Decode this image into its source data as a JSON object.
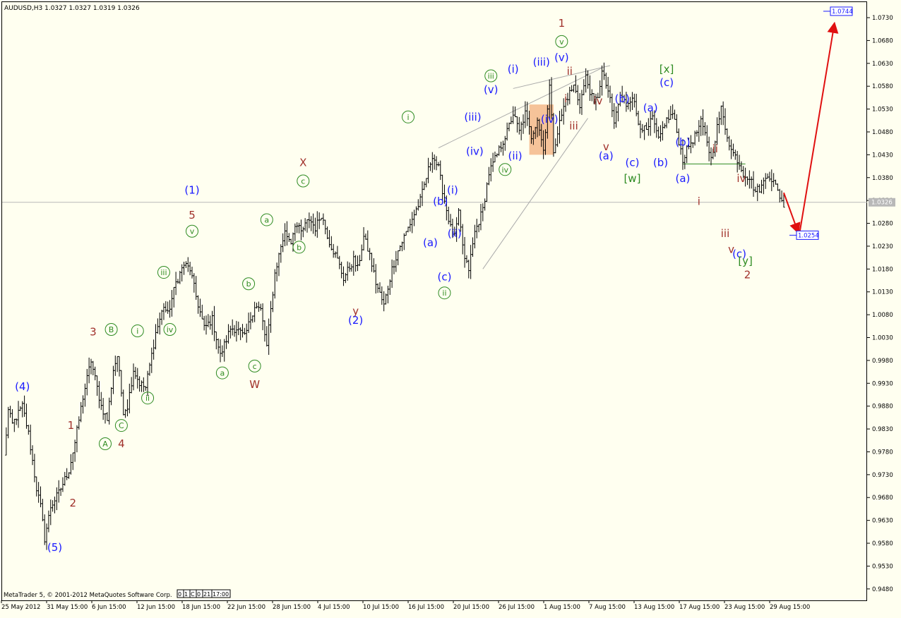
{
  "header": {
    "symbol_text": "AUDUSD,H3  1.0327 1.0327 1.0319 1.0326"
  },
  "footer": {
    "copyright": "MetaTrader 5, © 2001-2012 MetaQuotes Software Corp.",
    "tab_labels": [
      "0",
      "1",
      "C",
      "0",
      "21",
      "17:00"
    ]
  },
  "colors": {
    "background": "#fffff0",
    "bars": "#000000",
    "blue_labels": "#1a1aff",
    "green_labels": "#2e8b22",
    "brown_labels": "#a0302a",
    "arrow": "#e01010",
    "box": "#f4b98a",
    "current_line": "#b8b8b8"
  },
  "chart_data": {
    "type": "ohlc",
    "symbol": "AUDUSD",
    "timeframe": "H3",
    "last_quote": {
      "open": 1.0327,
      "high": 1.0327,
      "low": 1.0319,
      "close": 1.0326
    },
    "ylim": [
      0.9455,
      1.0764
    ],
    "y_ticks": [
      "1.0730",
      "1.0680",
      "1.0630",
      "1.0580",
      "1.0530",
      "1.0480",
      "1.0430",
      "1.0380",
      "1.0330",
      "1.0280",
      "1.0230",
      "1.0180",
      "1.0130",
      "1.0080",
      "1.0030",
      "0.9980",
      "0.9930",
      "0.9880",
      "0.9830",
      "0.9780",
      "0.9730",
      "0.9680",
      "0.9630",
      "0.9580",
      "0.9530",
      "0.9480"
    ],
    "x_labels": [
      "25 May 2012",
      "31 May 15:00",
      "6 Jun 15:00",
      "12 Jun 15:00",
      "18 Jun 15:00",
      "22 Jun 15:00",
      "28 Jun 15:00",
      "4 Jul 15:00",
      "10 Jul 15:00",
      "16 Jul 15:00",
      "20 Jul 15:00",
      "26 Jul 15:00",
      "1 Aug 15:00",
      "7 Aug 15:00",
      "13 Aug 15:00",
      "17 Aug 15:00",
      "23 Aug 15:00",
      "29 Aug 15:00"
    ],
    "current_price": {
      "value": 1.0326,
      "label": "1.0326"
    },
    "target_labels": [
      {
        "value": 1.0744,
        "label": "1.0744"
      },
      {
        "value": 1.0254,
        "label": "1.0254"
      }
    ],
    "anchors": [
      {
        "t": 0,
        "p": 0.977
      },
      {
        "t": 2,
        "p": 0.987
      },
      {
        "t": 4,
        "p": 0.984
      },
      {
        "t": 9,
        "p": 0.988
      },
      {
        "t": 12,
        "p": 0.982
      },
      {
        "t": 16,
        "p": 0.97
      },
      {
        "t": 18,
        "p": 0.966
      },
      {
        "t": 20,
        "p": 0.959
      },
      {
        "t": 23,
        "p": 0.966
      },
      {
        "t": 27,
        "p": 0.969
      },
      {
        "t": 32,
        "p": 0.974
      },
      {
        "t": 35,
        "p": 0.98
      },
      {
        "t": 39,
        "p": 0.99
      },
      {
        "t": 43,
        "p": 0.998
      },
      {
        "t": 46,
        "p": 0.992
      },
      {
        "t": 48,
        "p": 0.988
      },
      {
        "t": 51,
        "p": 0.985
      },
      {
        "t": 54,
        "p": 0.996
      },
      {
        "t": 56,
        "p": 0.999
      },
      {
        "t": 59,
        "p": 0.987
      },
      {
        "t": 61,
        "p": 0.988
      },
      {
        "t": 64,
        "p": 0.996
      },
      {
        "t": 67,
        "p": 0.993
      },
      {
        "t": 70,
        "p": 0.992
      },
      {
        "t": 75,
        "p": 1.004
      },
      {
        "t": 79,
        "p": 1.01
      },
      {
        "t": 81,
        "p": 1.008
      },
      {
        "t": 85,
        "p": 1.015
      },
      {
        "t": 89,
        "p": 1.019
      },
      {
        "t": 92,
        "p": 1.018
      },
      {
        "t": 95,
        "p": 1.012
      },
      {
        "t": 99,
        "p": 1.005
      },
      {
        "t": 103,
        "p": 1.007
      },
      {
        "t": 107,
        "p": 0.999
      },
      {
        "t": 112,
        "p": 1.005
      },
      {
        "t": 115,
        "p": 1.005
      },
      {
        "t": 119,
        "p": 1.003
      },
      {
        "t": 124,
        "p": 1.01
      },
      {
        "t": 127,
        "p": 1.009
      },
      {
        "t": 130,
        "p": 1.001
      },
      {
        "t": 134,
        "p": 1.017
      },
      {
        "t": 137,
        "p": 1.023
      },
      {
        "t": 139,
        "p": 1.026
      },
      {
        "t": 142,
        "p": 1.024
      },
      {
        "t": 144,
        "p": 1.028
      },
      {
        "t": 147,
        "p": 1.026
      },
      {
        "t": 151,
        "p": 1.029
      },
      {
        "t": 154,
        "p": 1.027
      },
      {
        "t": 157,
        "p": 1.03
      },
      {
        "t": 161,
        "p": 1.024
      },
      {
        "t": 165,
        "p": 1.02
      },
      {
        "t": 168,
        "p": 1.016
      },
      {
        "t": 173,
        "p": 1.02
      },
      {
        "t": 175,
        "p": 1.018
      },
      {
        "t": 178,
        "p": 1.025
      },
      {
        "t": 181,
        "p": 1.021
      },
      {
        "t": 184,
        "p": 1.015
      },
      {
        "t": 188,
        "p": 1.01
      },
      {
        "t": 192,
        "p": 1.018
      },
      {
        "t": 195,
        "p": 1.022
      },
      {
        "t": 200,
        "p": 1.027
      },
      {
        "t": 203,
        "p": 1.03
      },
      {
        "t": 206,
        "p": 1.033
      },
      {
        "t": 209,
        "p": 1.038
      },
      {
        "t": 212,
        "p": 1.043
      },
      {
        "t": 215,
        "p": 1.04
      },
      {
        "t": 218,
        "p": 1.033
      },
      {
        "t": 221,
        "p": 1.027
      },
      {
        "t": 223,
        "p": 1.025
      },
      {
        "t": 225,
        "p": 1.03
      },
      {
        "t": 228,
        "p": 1.02
      },
      {
        "t": 230,
        "p": 1.018
      },
      {
        "t": 233,
        "p": 1.026
      },
      {
        "t": 237,
        "p": 1.031
      },
      {
        "t": 240,
        "p": 1.039
      },
      {
        "t": 243,
        "p": 1.042
      },
      {
        "t": 246,
        "p": 1.045
      },
      {
        "t": 249,
        "p": 1.048
      },
      {
        "t": 252,
        "p": 1.052
      },
      {
        "t": 255,
        "p": 1.048
      },
      {
        "t": 258,
        "p": 1.052
      },
      {
        "t": 261,
        "p": 1.047
      },
      {
        "t": 264,
        "p": 1.051
      },
      {
        "t": 267,
        "p": 1.044
      },
      {
        "t": 270,
        "p": 1.058
      },
      {
        "t": 272,
        "p": 1.044
      },
      {
        "t": 275,
        "p": 1.05
      },
      {
        "t": 278,
        "p": 1.055
      },
      {
        "t": 282,
        "p": 1.058
      },
      {
        "t": 285,
        "p": 1.054
      },
      {
        "t": 288,
        "p": 1.06
      },
      {
        "t": 292,
        "p": 1.054
      },
      {
        "t": 294,
        "p": 1.056
      },
      {
        "t": 296,
        "p": 1.061
      },
      {
        "t": 299,
        "p": 1.057
      },
      {
        "t": 302,
        "p": 1.05
      },
      {
        "t": 305,
        "p": 1.056
      },
      {
        "t": 308,
        "p": 1.054
      },
      {
        "t": 311,
        "p": 1.056
      },
      {
        "t": 314,
        "p": 1.05
      },
      {
        "t": 318,
        "p": 1.048
      },
      {
        "t": 321,
        "p": 1.051
      },
      {
        "t": 324,
        "p": 1.046
      },
      {
        "t": 327,
        "p": 1.05
      },
      {
        "t": 331,
        "p": 1.052
      },
      {
        "t": 334,
        "p": 1.046
      },
      {
        "t": 336,
        "p": 1.042
      },
      {
        "t": 339,
        "p": 1.045
      },
      {
        "t": 342,
        "p": 1.047
      },
      {
        "t": 345,
        "p": 1.05
      },
      {
        "t": 348,
        "p": 1.046
      },
      {
        "t": 350,
        "p": 1.042
      },
      {
        "t": 353,
        "p": 1.049
      },
      {
        "t": 355,
        "p": 1.053
      },
      {
        "t": 357,
        "p": 1.049
      },
      {
        "t": 360,
        "p": 1.044
      },
      {
        "t": 363,
        "p": 1.042
      },
      {
        "t": 366,
        "p": 1.039
      },
      {
        "t": 369,
        "p": 1.038
      },
      {
        "t": 372,
        "p": 1.035
      },
      {
        "t": 375,
        "p": 1.036
      },
      {
        "t": 378,
        "p": 1.039
      },
      {
        "t": 381,
        "p": 1.037
      },
      {
        "t": 384,
        "p": 1.034
      },
      {
        "t": 386,
        "p": 1.032
      }
    ]
  },
  "annotations": [
    {
      "text": "(4)",
      "t": 9,
      "p": 0.9915,
      "color": "blue"
    },
    {
      "text": "(5)",
      "t": 25,
      "p": 0.9563,
      "color": "blue"
    },
    {
      "text": "1",
      "t": 33,
      "p": 0.983,
      "color": "brown"
    },
    {
      "text": "2",
      "t": 34,
      "p": 0.966,
      "color": "brown"
    },
    {
      "text": "3",
      "t": 44,
      "p": 1.0035,
      "color": "brown"
    },
    {
      "text": "4",
      "t": 58,
      "p": 0.979,
      "color": "brown"
    },
    {
      "text": "A",
      "t": 50,
      "p": 0.979,
      "color": "green",
      "circled": true
    },
    {
      "text": "B",
      "t": 53,
      "p": 1.004,
      "color": "green",
      "circled": true
    },
    {
      "text": "C",
      "t": 58,
      "p": 0.983,
      "color": "green",
      "circled": true
    },
    {
      "text": "i",
      "t": 66,
      "p": 1.0037,
      "color": "green",
      "circled": true
    },
    {
      "text": "ii",
      "t": 71,
      "p": 0.989,
      "color": "green",
      "circled": true
    },
    {
      "text": "iii",
      "t": 79,
      "p": 1.0165,
      "color": "green",
      "circled": true
    },
    {
      "text": "iv",
      "t": 82,
      "p": 1.004,
      "color": "green",
      "circled": true
    },
    {
      "text": "v",
      "t": 93,
      "p": 1.0255,
      "color": "green",
      "circled": true
    },
    {
      "text": "5",
      "t": 93,
      "p": 1.029,
      "color": "brown"
    },
    {
      "text": "(1)",
      "t": 93,
      "p": 1.0345,
      "color": "blue"
    },
    {
      "text": "a",
      "t": 108,
      "p": 0.9945,
      "color": "green",
      "circled": true
    },
    {
      "text": "b",
      "t": 121,
      "p": 1.014,
      "color": "green",
      "circled": true
    },
    {
      "text": "c",
      "t": 124,
      "p": 0.996,
      "color": "green",
      "circled": true
    },
    {
      "text": "W",
      "t": 124,
      "p": 0.992,
      "color": "brown"
    },
    {
      "text": "a",
      "t": 130,
      "p": 1.028,
      "color": "green",
      "circled": true
    },
    {
      "text": "b",
      "t": 146,
      "p": 1.022,
      "color": "green",
      "circled": true
    },
    {
      "text": "c",
      "t": 148,
      "p": 1.0365,
      "color": "green",
      "circled": true
    },
    {
      "text": "X",
      "t": 148,
      "p": 1.0405,
      "color": "brown"
    },
    {
      "text": "y",
      "t": 174,
      "p": 1.008,
      "color": "brown"
    },
    {
      "text": "(2)",
      "t": 174,
      "p": 1.006,
      "color": "blue"
    },
    {
      "text": "i",
      "t": 200,
      "p": 1.0505,
      "color": "green",
      "circled": true
    },
    {
      "text": "(a)",
      "t": 211,
      "p": 1.023,
      "color": "blue"
    },
    {
      "text": "(b)",
      "t": 216,
      "p": 1.032,
      "color": "blue"
    },
    {
      "text": "(c)",
      "t": 218,
      "p": 1.0155,
      "color": "blue"
    },
    {
      "text": "ii",
      "t": 218,
      "p": 1.012,
      "color": "green",
      "circled": true
    },
    {
      "text": "(i)",
      "t": 222,
      "p": 1.0345,
      "color": "blue"
    },
    {
      "text": "(ii)",
      "t": 223,
      "p": 1.025,
      "color": "blue"
    },
    {
      "text": "(iii)",
      "t": 232,
      "p": 1.0505,
      "color": "blue"
    },
    {
      "text": "(iv)",
      "t": 233,
      "p": 1.043,
      "color": "blue"
    },
    {
      "text": "iii",
      "t": 241,
      "p": 1.0595,
      "color": "green",
      "circled": true
    },
    {
      "text": "(v)",
      "t": 241,
      "p": 1.0565,
      "color": "blue"
    },
    {
      "text": "iv",
      "t": 248,
      "p": 1.039,
      "color": "green",
      "circled": true
    },
    {
      "text": "(i)",
      "t": 252,
      "p": 1.061,
      "color": "blue"
    },
    {
      "text": "(ii)",
      "t": 253,
      "p": 1.042,
      "color": "blue"
    },
    {
      "text": "(iii)",
      "t": 266,
      "p": 1.0625,
      "color": "blue"
    },
    {
      "text": "(iv)",
      "t": 270,
      "p": 1.05,
      "color": "blue"
    },
    {
      "text": "1",
      "t": 276,
      "p": 1.071,
      "color": "brown"
    },
    {
      "text": "v",
      "t": 276,
      "p": 1.067,
      "color": "green",
      "circled": true
    },
    {
      "text": "(v)",
      "t": 276,
      "p": 1.0635,
      "color": "blue"
    },
    {
      "text": "ii",
      "t": 280,
      "p": 1.0605,
      "color": "brown"
    },
    {
      "text": "i",
      "t": 278,
      "p": 1.0545,
      "color": "brown"
    },
    {
      "text": "iii",
      "t": 282,
      "p": 1.0485,
      "color": "brown"
    },
    {
      "text": "iv",
      "t": 294,
      "p": 1.054,
      "color": "brown"
    },
    {
      "text": "v",
      "t": 298,
      "p": 1.044,
      "color": "brown"
    },
    {
      "text": "(a)",
      "t": 298,
      "p": 1.042,
      "color": "blue"
    },
    {
      "text": "(b)",
      "t": 306,
      "p": 1.0545,
      "color": "blue"
    },
    {
      "text": "(c)",
      "t": 311,
      "p": 1.0405,
      "color": "blue"
    },
    {
      "text": "[w]",
      "t": 311,
      "p": 1.037,
      "color": "green"
    },
    {
      "text": "(a)",
      "t": 320,
      "p": 1.0525,
      "color": "blue"
    },
    {
      "text": "(b)",
      "t": 325,
      "p": 1.0405,
      "color": "blue"
    },
    {
      "text": "[x]",
      "t": 328,
      "p": 1.061,
      "color": "green"
    },
    {
      "text": "(c)",
      "t": 328,
      "p": 1.058,
      "color": "blue"
    },
    {
      "text": "(b)",
      "t": 336,
      "p": 1.045,
      "color": "blue"
    },
    {
      "text": "(a)",
      "t": 336,
      "p": 1.037,
      "color": "blue"
    },
    {
      "text": "i",
      "t": 344,
      "p": 1.032,
      "color": "brown"
    },
    {
      "text": "ii",
      "t": 352,
      "p": 1.0435,
      "color": "brown"
    },
    {
      "text": "iv",
      "t": 365,
      "p": 1.037,
      "color": "brown"
    },
    {
      "text": "iii",
      "t": 357,
      "p": 1.025,
      "color": "brown"
    },
    {
      "text": "v",
      "t": 360,
      "p": 1.0215,
      "color": "brown"
    },
    {
      "text": "(c)",
      "t": 364,
      "p": 1.0205,
      "color": "blue"
    },
    {
      "text": "[y]",
      "t": 367,
      "p": 1.019,
      "color": "green"
    },
    {
      "text": "2",
      "t": 368,
      "p": 1.016,
      "color": "brown"
    }
  ]
}
